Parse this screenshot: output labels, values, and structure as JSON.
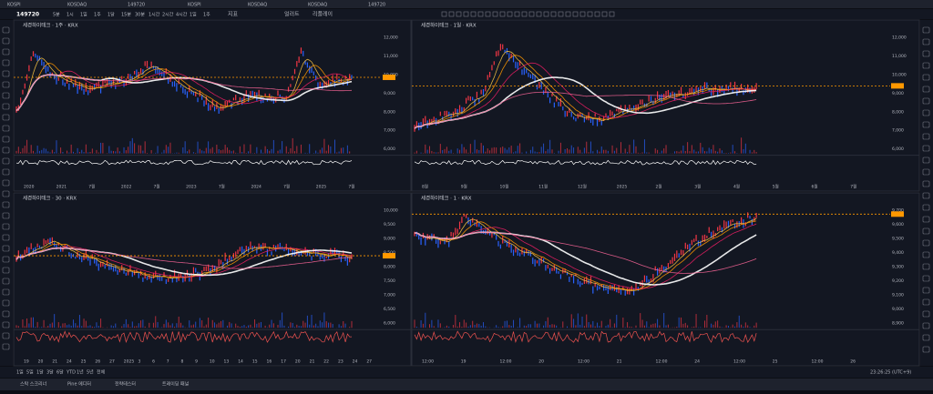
{
  "tabs": [
    "KOSPI",
    "KOSDAQ",
    "149720",
    "KOSPI",
    "KOSDAQ",
    "KOSDAQ",
    "149720"
  ],
  "toolbar": {
    "symbol": "149720",
    "intervals": [
      "5분",
      "1시",
      "1일",
      "1주",
      "1달",
      "15분",
      "30분",
      "1시간",
      "2시간",
      "4시간",
      "1일",
      "1주"
    ],
    "indicators": "지표",
    "alert": "얼러트",
    "replay": "리플레이"
  },
  "charts": [
    {
      "title": "세경하이테크 · 1주 · KRX",
      "xlabels": [
        "2020",
        "2021",
        "7월",
        "2022",
        "7월",
        "2023",
        "7월",
        "2024",
        "7월",
        "2025",
        "7월"
      ],
      "ylabels": [
        "12,000",
        "11,000",
        "10,000",
        "9,000",
        "8,000",
        "7,000",
        "6,000"
      ]
    },
    {
      "title": "세경하이테크 · 1일 · KRX",
      "xlabels": [
        "8월",
        "9월",
        "10월",
        "11월",
        "12월",
        "2025",
        "2월",
        "3월",
        "4월",
        "5월",
        "6월",
        "7월"
      ],
      "ylabels": [
        "12,000",
        "11,000",
        "10,000",
        "9,000",
        "8,000",
        "7,000",
        "6,000"
      ]
    },
    {
      "title": "세경하이테크 · 30 · KRX",
      "xlabels": [
        "19",
        "20",
        "21",
        "24",
        "25",
        "26",
        "27",
        "2025",
        "3",
        "6",
        "7",
        "8",
        "9",
        "10",
        "13",
        "14",
        "15",
        "16",
        "17",
        "20",
        "21",
        "22",
        "23",
        "24",
        "27"
      ],
      "ylabels": [
        "10,000",
        "9,500",
        "9,000",
        "8,500",
        "8,000",
        "7,500",
        "7,000",
        "6,500",
        "6,000"
      ]
    },
    {
      "title": "세경하이테크 · 1 · KRX",
      "xlabels": [
        "12:00",
        "19",
        "12:00",
        "20",
        "12:00",
        "21",
        "12:00",
        "24",
        "12:00",
        "25",
        "12:00",
        "26"
      ],
      "ylabels": [
        "9,700",
        "9,600",
        "9,500",
        "9,400",
        "9,300",
        "9,200",
        "9,100",
        "9,000",
        "8,900"
      ]
    }
  ],
  "range_buttons": [
    "1일",
    "5일",
    "1달",
    "3달",
    "6달",
    "YTD",
    "1년",
    "5년",
    "전체"
  ],
  "bottom_tabs": [
    "스탁 스크리너",
    "Pine 에디터",
    "전략테스터",
    "트레이딩 패널"
  ],
  "clock": "23:26:25 (UTC+9)"
}
